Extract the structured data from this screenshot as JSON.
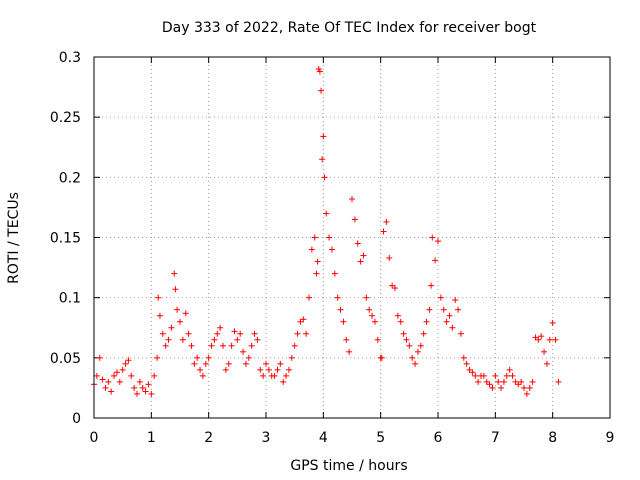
{
  "chart_data": {
    "type": "scatter",
    "title": "Day 333 of 2022, Rate Of TEC Index for receiver bogt",
    "xlabel": "GPS time / hours",
    "ylabel": "ROTI / TECUs",
    "xlim": [
      0,
      9
    ],
    "ylim": [
      0,
      0.3
    ],
    "xticks": [
      0,
      1,
      2,
      3,
      4,
      5,
      6,
      7,
      8,
      9
    ],
    "xtick_labels": [
      "0",
      "1",
      "2",
      "3",
      "4",
      "5",
      "6",
      "7",
      "8",
      "9"
    ],
    "yticks": [
      0,
      0.05,
      0.1,
      0.15,
      0.2,
      0.25,
      0.3
    ],
    "ytick_labels": [
      "0",
      "0.05",
      "0.1",
      "0.15",
      "0.2",
      "0.25",
      "0.3"
    ],
    "grid": true,
    "marker": "+",
    "color": "#ff0000",
    "series": [
      {
        "name": "ROTI",
        "x": [
          0.0,
          0.05,
          0.1,
          0.15,
          0.2,
          0.25,
          0.3,
          0.35,
          0.4,
          0.45,
          0.5,
          0.55,
          0.6,
          0.65,
          0.7,
          0.75,
          0.8,
          0.85,
          0.9,
          0.95,
          1.0,
          1.05,
          1.1,
          1.12,
          1.15,
          1.2,
          1.25,
          1.3,
          1.35,
          1.4,
          1.42,
          1.45,
          1.5,
          1.55,
          1.6,
          1.65,
          1.7,
          1.75,
          1.8,
          1.85,
          1.9,
          1.95,
          2.0,
          2.05,
          2.1,
          2.15,
          2.2,
          2.25,
          2.3,
          2.35,
          2.4,
          2.45,
          2.5,
          2.55,
          2.6,
          2.65,
          2.7,
          2.75,
          2.8,
          2.85,
          2.9,
          2.95,
          3.0,
          3.05,
          3.1,
          3.15,
          3.2,
          3.25,
          3.3,
          3.35,
          3.4,
          3.45,
          3.5,
          3.55,
          3.6,
          3.65,
          3.7,
          3.75,
          3.8,
          3.85,
          3.88,
          3.9,
          3.92,
          3.94,
          3.96,
          3.98,
          4.0,
          4.02,
          4.05,
          4.1,
          4.15,
          4.2,
          4.25,
          4.3,
          4.35,
          4.4,
          4.45,
          4.5,
          4.55,
          4.6,
          4.65,
          4.7,
          4.75,
          4.8,
          4.85,
          4.9,
          4.95,
          5.0,
          5.02,
          5.05,
          5.1,
          5.15,
          5.2,
          5.25,
          5.3,
          5.35,
          5.4,
          5.45,
          5.5,
          5.55,
          5.6,
          5.65,
          5.7,
          5.75,
          5.8,
          5.85,
          5.88,
          5.9,
          5.95,
          6.0,
          6.05,
          6.1,
          6.15,
          6.2,
          6.25,
          6.3,
          6.35,
          6.4,
          6.45,
          6.5,
          6.55,
          6.6,
          6.65,
          6.7,
          6.75,
          6.8,
          6.85,
          6.9,
          6.95,
          7.0,
          7.05,
          7.1,
          7.15,
          7.2,
          7.25,
          7.3,
          7.35,
          7.4,
          7.45,
          7.5,
          7.55,
          7.6,
          7.65,
          7.7,
          7.75,
          7.8,
          7.85,
          7.9,
          7.95,
          8.0,
          8.05,
          8.1
        ],
        "y": [
          0.028,
          0.035,
          0.05,
          0.032,
          0.025,
          0.03,
          0.022,
          0.035,
          0.038,
          0.03,
          0.04,
          0.045,
          0.048,
          0.035,
          0.025,
          0.02,
          0.03,
          0.025,
          0.022,
          0.028,
          0.02,
          0.035,
          0.05,
          0.1,
          0.085,
          0.07,
          0.06,
          0.065,
          0.075,
          0.12,
          0.107,
          0.09,
          0.08,
          0.065,
          0.087,
          0.07,
          0.06,
          0.045,
          0.05,
          0.04,
          0.035,
          0.045,
          0.05,
          0.06,
          0.065,
          0.07,
          0.075,
          0.06,
          0.04,
          0.045,
          0.06,
          0.072,
          0.065,
          0.07,
          0.055,
          0.045,
          0.05,
          0.06,
          0.07,
          0.065,
          0.04,
          0.035,
          0.045,
          0.04,
          0.035,
          0.035,
          0.04,
          0.045,
          0.03,
          0.035,
          0.04,
          0.05,
          0.06,
          0.07,
          0.08,
          0.082,
          0.07,
          0.1,
          0.14,
          0.15,
          0.12,
          0.13,
          0.29,
          0.288,
          0.272,
          0.215,
          0.234,
          0.2,
          0.17,
          0.15,
          0.14,
          0.12,
          0.1,
          0.09,
          0.08,
          0.065,
          0.055,
          0.182,
          0.165,
          0.145,
          0.13,
          0.135,
          0.1,
          0.09,
          0.085,
          0.08,
          0.065,
          0.05,
          0.05,
          0.155,
          0.163,
          0.133,
          0.11,
          0.108,
          0.085,
          0.08,
          0.07,
          0.065,
          0.06,
          0.05,
          0.045,
          0.055,
          0.06,
          0.07,
          0.08,
          0.09,
          0.11,
          0.15,
          0.131,
          0.147,
          0.1,
          0.09,
          0.08,
          0.085,
          0.075,
          0.098,
          0.09,
          0.07,
          0.05,
          0.045,
          0.04,
          0.038,
          0.035,
          0.03,
          0.035,
          0.035,
          0.03,
          0.028,
          0.025,
          0.035,
          0.03,
          0.025,
          0.03,
          0.035,
          0.04,
          0.035,
          0.03,
          0.028,
          0.03,
          0.025,
          0.02,
          0.025,
          0.03,
          0.067,
          0.065,
          0.068,
          0.055,
          0.045,
          0.065,
          0.079,
          0.065,
          0.03
        ]
      }
    ]
  }
}
